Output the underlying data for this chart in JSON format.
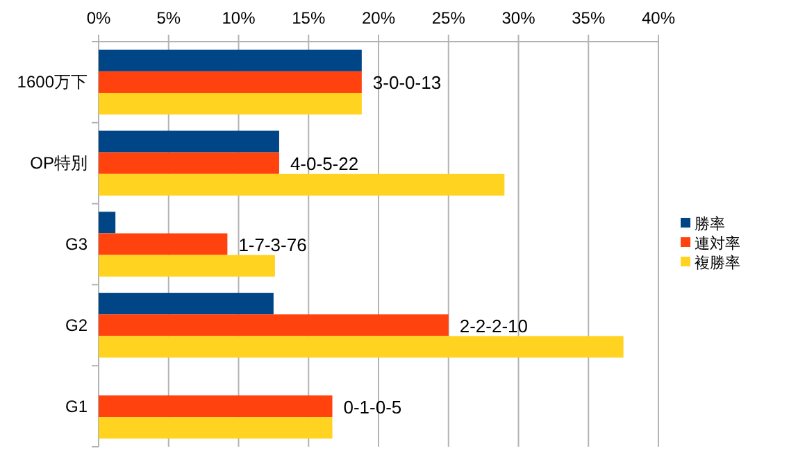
{
  "chart_data": {
    "type": "bar",
    "orientation": "horizontal",
    "categories": [
      "1600万下",
      "OP特別",
      "G3",
      "G2",
      "G1"
    ],
    "series": [
      {
        "name": "勝率",
        "color": "#004586",
        "values": [
          18.8,
          12.9,
          1.2,
          12.5,
          0
        ]
      },
      {
        "name": "連対率",
        "color": "#ff420e",
        "values": [
          18.8,
          12.9,
          9.2,
          25,
          16.7
        ]
      },
      {
        "name": "複勝率",
        "color": "#ffd320",
        "values": [
          18.8,
          29.0,
          12.6,
          37.5,
          16.7
        ]
      }
    ],
    "xlim": [
      0,
      40
    ],
    "xticks": [
      {
        "value": 0,
        "label": "0%"
      },
      {
        "value": 5,
        "label": "5%"
      },
      {
        "value": 10,
        "label": "10%"
      },
      {
        "value": 15,
        "label": "15%"
      },
      {
        "value": 20,
        "label": "20%"
      },
      {
        "value": 25,
        "label": "25%"
      },
      {
        "value": 30,
        "label": "30%"
      },
      {
        "value": 35,
        "label": "35%"
      },
      {
        "value": 40,
        "label": "40%"
      }
    ],
    "grid": "x",
    "legend": "right",
    "annotations": [
      "3-0-0-13",
      "4-0-5-22",
      "1-7-3-76",
      "2-2-2-10",
      "0-1-0-5"
    ]
  }
}
